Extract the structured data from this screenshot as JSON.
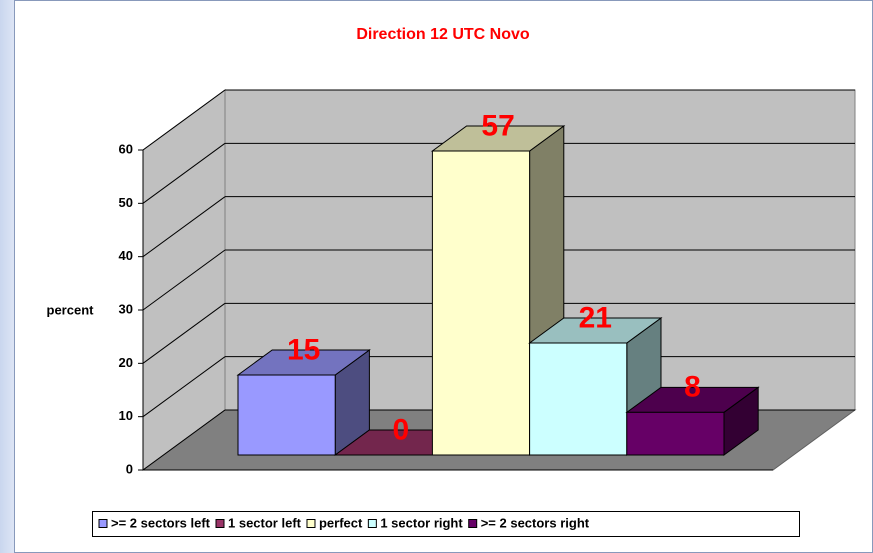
{
  "chart_data": {
    "type": "bar3d",
    "title": "Direction 12 UTC Novo",
    "ylabel": "percent",
    "categories": [
      ">= 2 sectors left",
      "1 sector left",
      "perfect",
      "1 sector right",
      ">= 2 sectors right"
    ],
    "values": [
      15,
      0,
      57,
      21,
      8
    ],
    "colors": [
      "#9999ff",
      "#993366",
      "#ffffcc",
      "#ccffff",
      "#660066"
    ],
    "value_label_color": "#ff0000",
    "ylim": [
      0,
      60
    ],
    "yticks": [
      0,
      10,
      20,
      30,
      40,
      50,
      60
    ],
    "grid": true,
    "legend": "bottom"
  }
}
